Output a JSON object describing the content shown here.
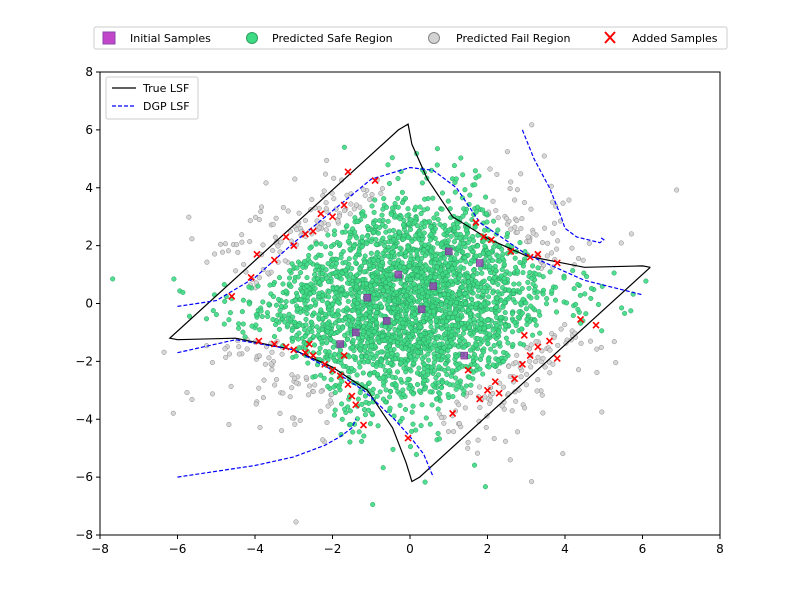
{
  "chart_data": {
    "type": "scatter",
    "title": "",
    "xlabel": "",
    "ylabel": "",
    "xlim": [
      -8,
      8
    ],
    "ylim": [
      -8,
      8
    ],
    "x_ticks": [
      -8,
      -6,
      -4,
      -2,
      0,
      2,
      4,
      6,
      8
    ],
    "y_ticks": [
      -8,
      -6,
      -4,
      -2,
      0,
      2,
      4,
      6,
      8
    ],
    "x_tick_labels": [
      "−8",
      "−6",
      "−4",
      "−2",
      "0",
      "2",
      "4",
      "6",
      "8"
    ],
    "y_tick_labels": [
      "−8",
      "−6",
      "−4",
      "−2",
      "0",
      "2",
      "4",
      "6",
      "8"
    ],
    "grid": false,
    "top_legend": {
      "placement": "top-center",
      "entries": [
        {
          "label": "Initial Samples",
          "marker": "square",
          "color": "#c146c9"
        },
        {
          "label": "Predicted Safe Region",
          "marker": "circle",
          "color": "#3ddc84"
        },
        {
          "label": "Predicted Fail Region",
          "marker": "circle",
          "color": "#d3d3d3"
        },
        {
          "label": "Added Samples",
          "marker": "x",
          "color": "#ff0000"
        }
      ]
    },
    "inner_legend": {
      "placement": "upper-left",
      "entries": [
        {
          "label": "True LSF",
          "style": "solid",
          "color": "#000000"
        },
        {
          "label": "DGP LSF",
          "style": "dashed",
          "color": "#0000ff"
        }
      ]
    },
    "series": [
      {
        "name": "Initial Samples",
        "marker": "square",
        "color": "#8e44ad",
        "points": [
          [
            -0.3,
            1.0
          ],
          [
            0.6,
            0.6
          ],
          [
            -1.1,
            0.2
          ],
          [
            1.0,
            1.8
          ],
          [
            1.8,
            1.4
          ],
          [
            -0.6,
            -0.6
          ],
          [
            0.3,
            -0.2
          ],
          [
            -1.4,
            -1.0
          ],
          [
            -1.8,
            -1.4
          ],
          [
            1.4,
            -1.8
          ]
        ]
      },
      {
        "name": "Added Samples",
        "marker": "x",
        "color": "#ff0000",
        "points": [
          [
            -4.6,
            0.25
          ],
          [
            -3.95,
            1.7
          ],
          [
            -3.5,
            1.5
          ],
          [
            -3.2,
            2.3
          ],
          [
            -3.0,
            2.0
          ],
          [
            -2.7,
            2.4
          ],
          [
            -2.5,
            2.5
          ],
          [
            -2.3,
            3.1
          ],
          [
            -2.0,
            3.0
          ],
          [
            -1.7,
            3.4
          ],
          [
            -1.6,
            4.55
          ],
          [
            -0.9,
            4.25
          ],
          [
            1.7,
            2.8
          ],
          [
            1.9,
            2.3
          ],
          [
            2.1,
            2.2
          ],
          [
            2.6,
            1.8
          ],
          [
            3.1,
            1.6
          ],
          [
            3.3,
            1.7
          ],
          [
            3.8,
            1.4
          ],
          [
            -4.1,
            0.9
          ],
          [
            -3.9,
            -1.3
          ],
          [
            -3.5,
            -1.4
          ],
          [
            -3.2,
            -1.5
          ],
          [
            -3.0,
            -1.6
          ],
          [
            -2.7,
            -1.7
          ],
          [
            -2.5,
            -1.8
          ],
          [
            -2.2,
            -2.1
          ],
          [
            -2.0,
            -2.3
          ],
          [
            -1.8,
            -2.5
          ],
          [
            -1.6,
            -2.8
          ],
          [
            -1.5,
            -3.2
          ],
          [
            -1.4,
            -3.5
          ],
          [
            -1.2,
            -4.2
          ],
          [
            -2.6,
            -1.4
          ],
          [
            -1.7,
            -1.8
          ],
          [
            1.1,
            -3.8
          ],
          [
            1.5,
            -2.3
          ],
          [
            1.8,
            -3.3
          ],
          [
            2.0,
            -3.0
          ],
          [
            2.2,
            -2.7
          ],
          [
            2.3,
            -3.1
          ],
          [
            2.7,
            -2.6
          ],
          [
            2.9,
            -2.1
          ],
          [
            3.1,
            -1.8
          ],
          [
            3.3,
            -1.5
          ],
          [
            3.6,
            -1.3
          ],
          [
            3.8,
            -1.9
          ],
          [
            4.4,
            -0.55
          ],
          [
            4.8,
            -0.75
          ],
          [
            2.95,
            -1.1
          ],
          [
            -0.05,
            -4.65
          ]
        ]
      }
    ],
    "scatter_clouds": [
      {
        "name": "Predicted Safe Region",
        "color": "#3ddc84",
        "edge_color": "#2e9e62",
        "center": [
          0,
          0
        ],
        "spread": [
          1.9,
          1.8
        ],
        "approx_count": 2000
      },
      {
        "name": "Predicted Fail Region",
        "color": "#d3d3d3",
        "edge_color": "#888888",
        "regions": [
          "upper-left",
          "upper-right",
          "lower-left",
          "lower-right"
        ]
      }
    ],
    "curves": [
      {
        "name": "True LSF",
        "style": "solid",
        "color": "#000000",
        "points": [
          [
            6.2,
            1.25
          ],
          [
            6.0,
            1.3
          ],
          [
            4.5,
            1.25
          ],
          [
            3.0,
            1.65
          ],
          [
            2.0,
            2.25
          ],
          [
            1.1,
            3.0
          ],
          [
            0.45,
            4.3
          ],
          [
            0.05,
            5.5
          ],
          [
            -0.05,
            6.2
          ],
          [
            -0.3,
            6.0
          ],
          [
            -6.2,
            -1.2
          ],
          [
            -6.0,
            -1.25
          ],
          [
            -4.5,
            -1.2
          ],
          [
            -3.0,
            -1.6
          ],
          [
            -2.0,
            -2.2
          ],
          [
            -1.1,
            -3.0
          ],
          [
            -0.45,
            -4.3
          ],
          [
            -0.1,
            -5.5
          ],
          [
            0.05,
            -6.15
          ],
          [
            0.25,
            -6.0
          ],
          [
            6.2,
            1.25
          ]
        ]
      },
      {
        "name": "DGP LSF",
        "style": "dashed",
        "color": "#0000ff",
        "points": [
          [
            -6.0,
            -0.1
          ],
          [
            -5.0,
            0.1
          ],
          [
            -4.0,
            0.9
          ],
          [
            -3.0,
            2.1
          ],
          [
            -2.0,
            3.2
          ],
          [
            -1.0,
            4.3
          ],
          [
            0.0,
            4.7
          ],
          [
            0.6,
            4.6
          ],
          [
            1.2,
            4.0
          ],
          [
            1.8,
            2.8
          ],
          [
            3.0,
            1.7
          ],
          [
            4.5,
            0.8
          ],
          [
            6.0,
            0.3
          ]
        ]
      },
      {
        "name": "DGP LSF",
        "style": "dashed",
        "color": "#0000ff",
        "points": [
          [
            -6.0,
            -1.7
          ],
          [
            -4.5,
            -1.25
          ],
          [
            -3.0,
            -1.6
          ],
          [
            -2.0,
            -2.3
          ],
          [
            -1.2,
            -3.0
          ],
          [
            -0.4,
            -4.0
          ],
          [
            0.0,
            -4.6
          ],
          [
            0.35,
            -5.2
          ],
          [
            0.6,
            -6.0
          ]
        ]
      },
      {
        "name": "DGP LSF",
        "style": "dashed",
        "color": "#0000ff",
        "points": [
          [
            2.9,
            6.0
          ],
          [
            3.2,
            5.0
          ],
          [
            3.6,
            4.0
          ],
          [
            3.9,
            3.0
          ],
          [
            4.0,
            2.6
          ],
          [
            4.3,
            2.3
          ],
          [
            4.6,
            2.2
          ],
          [
            4.9,
            2.1
          ],
          [
            5.0,
            2.2
          ],
          [
            4.9,
            2.3
          ]
        ]
      },
      {
        "name": "DGP LSF",
        "style": "dashed",
        "color": "#0000ff",
        "points": [
          [
            -6.0,
            -6.0
          ],
          [
            -4.0,
            -5.6
          ],
          [
            -3.0,
            -5.3
          ],
          [
            -2.2,
            -4.9
          ],
          [
            -1.8,
            -4.6
          ],
          [
            -1.5,
            -4.3
          ],
          [
            -1.4,
            -4.0
          ]
        ]
      }
    ]
  }
}
